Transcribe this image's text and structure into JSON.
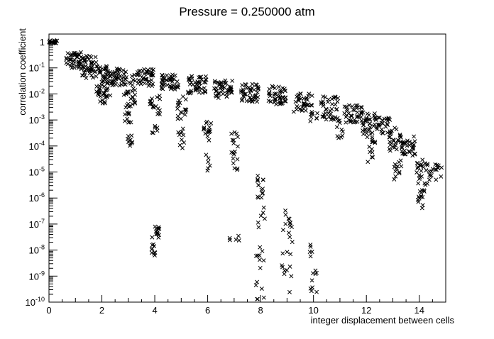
{
  "chart_data": {
    "type": "scatter",
    "title": "Pressure = 0.250000 atm",
    "xlabel": "integer displacement between cells",
    "ylabel": "correlation coefficient",
    "xlim": [
      0,
      15
    ],
    "ylim": [
      1e-10,
      2
    ],
    "yscale": "log",
    "grid": false,
    "legend": "none",
    "marker": "x",
    "marker_color": "#000000",
    "xticks": [
      {
        "value": 0,
        "label": "0"
      },
      {
        "value": 2,
        "label": "2"
      },
      {
        "value": 4,
        "label": "4"
      },
      {
        "value": 6,
        "label": "6"
      },
      {
        "value": 8,
        "label": "8"
      },
      {
        "value": 10,
        "label": "10"
      },
      {
        "value": 12,
        "label": "12"
      },
      {
        "value": 14,
        "label": "14"
      }
    ],
    "yticks": [
      {
        "value": 1,
        "base": "1",
        "exp": ""
      },
      {
        "value": 0.1,
        "base": "10",
        "exp": "-1"
      },
      {
        "value": 0.01,
        "base": "10",
        "exp": "-2"
      },
      {
        "value": 0.001,
        "base": "10",
        "exp": "-3"
      },
      {
        "value": 0.0001,
        "base": "10",
        "exp": "-4"
      },
      {
        "value": 1e-05,
        "base": "10",
        "exp": "-5"
      },
      {
        "value": 1e-06,
        "base": "10",
        "exp": "-6"
      },
      {
        "value": 1e-07,
        "base": "10",
        "exp": "-7"
      },
      {
        "value": 1e-08,
        "base": "10",
        "exp": "-8"
      },
      {
        "value": 1e-09,
        "base": "10",
        "exp": "-9"
      },
      {
        "value": 1e-10,
        "base": "10",
        "exp": "-10"
      }
    ],
    "clusters": [
      {
        "x": 0.15,
        "xspread": 0.18,
        "ymin": 0.85,
        "ymax": 1.15,
        "n": 18
      },
      {
        "x": 1.0,
        "xspread": 0.35,
        "ymin": 0.1,
        "ymax": 0.4,
        "n": 45
      },
      {
        "x": 1.5,
        "xspread": 0.3,
        "ymin": 0.04,
        "ymax": 0.3,
        "n": 45
      },
      {
        "x": 2.05,
        "xspread": 0.28,
        "ymin": 0.008,
        "ymax": 0.12,
        "n": 55
      },
      {
        "x": 2.05,
        "xspread": 0.15,
        "ymin": 0.004,
        "ymax": 0.02,
        "n": 14
      },
      {
        "x": 2.65,
        "xspread": 0.3,
        "ymin": 0.02,
        "ymax": 0.1,
        "n": 40
      },
      {
        "x": 3.05,
        "xspread": 0.22,
        "ymin": 0.003,
        "ymax": 0.06,
        "n": 30
      },
      {
        "x": 3.0,
        "xspread": 0.15,
        "ymin": 0.0008,
        "ymax": 0.002,
        "n": 10
      },
      {
        "x": 3.05,
        "xspread": 0.12,
        "ymin": 0.0001,
        "ymax": 0.0003,
        "n": 10
      },
      {
        "x": 3.6,
        "xspread": 0.35,
        "ymin": 0.02,
        "ymax": 0.09,
        "n": 45
      },
      {
        "x": 4.0,
        "xspread": 0.22,
        "ymin": 0.0015,
        "ymax": 0.01,
        "n": 18
      },
      {
        "x": 4.0,
        "xspread": 0.12,
        "ymin": 0.0003,
        "ymax": 0.0006,
        "n": 6
      },
      {
        "x": 4.0,
        "xspread": 0.18,
        "ymin": 3e-08,
        "ymax": 9e-08,
        "n": 14
      },
      {
        "x": 4.0,
        "xspread": 0.12,
        "ymin": 6e-09,
        "ymax": 2e-08,
        "n": 10
      },
      {
        "x": 4.6,
        "xspread": 0.35,
        "ymin": 0.015,
        "ymax": 0.06,
        "n": 45
      },
      {
        "x": 5.0,
        "xspread": 0.2,
        "ymin": 0.001,
        "ymax": 0.01,
        "n": 18
      },
      {
        "x": 5.0,
        "xspread": 0.12,
        "ymin": 8e-05,
        "ymax": 0.0005,
        "n": 10
      },
      {
        "x": 5.6,
        "xspread": 0.35,
        "ymin": 0.01,
        "ymax": 0.05,
        "n": 45
      },
      {
        "x": 6.0,
        "xspread": 0.15,
        "ymin": 0.00015,
        "ymax": 0.001,
        "n": 16
      },
      {
        "x": 6.0,
        "xspread": 0.1,
        "ymin": 1e-05,
        "ymax": 5e-05,
        "n": 6
      },
      {
        "x": 6.6,
        "xspread": 0.35,
        "ymin": 0.007,
        "ymax": 0.035,
        "n": 45
      },
      {
        "x": 7.0,
        "xspread": 0.15,
        "ymin": 1e-05,
        "ymax": 0.0005,
        "n": 18
      },
      {
        "x": 7.0,
        "xspread": 0.2,
        "ymin": 2e-08,
        "ymax": 4e-08,
        "n": 5
      },
      {
        "x": 7.6,
        "xspread": 0.35,
        "ymin": 0.005,
        "ymax": 0.025,
        "n": 45
      },
      {
        "x": 8.0,
        "xspread": 0.12,
        "ymin": 1e-06,
        "ymax": 8e-06,
        "n": 16
      },
      {
        "x": 8.0,
        "xspread": 0.18,
        "ymin": 1e-10,
        "ymax": 5e-07,
        "n": 20
      },
      {
        "x": 8.6,
        "xspread": 0.35,
        "ymin": 0.004,
        "ymax": 0.02,
        "n": 45
      },
      {
        "x": 9.0,
        "xspread": 0.2,
        "ymin": 2e-10,
        "ymax": 7e-07,
        "n": 24
      },
      {
        "x": 9.6,
        "xspread": 0.35,
        "ymin": 0.002,
        "ymax": 0.012,
        "n": 40
      },
      {
        "x": 10.0,
        "xspread": 0.15,
        "ymin": 0.0009,
        "ymax": 0.002,
        "n": 8
      },
      {
        "x": 10.0,
        "xspread": 0.15,
        "ymin": 2e-10,
        "ymax": 3e-08,
        "n": 14
      },
      {
        "x": 10.6,
        "xspread": 0.35,
        "ymin": 0.001,
        "ymax": 0.008,
        "n": 40
      },
      {
        "x": 11.0,
        "xspread": 0.15,
        "ymin": 0.0002,
        "ymax": 0.001,
        "n": 10
      },
      {
        "x": 11.5,
        "xspread": 0.35,
        "ymin": 0.0008,
        "ymax": 0.004,
        "n": 40
      },
      {
        "x": 12.1,
        "xspread": 0.25,
        "ymin": 0.0002,
        "ymax": 0.002,
        "n": 30
      },
      {
        "x": 12.2,
        "xspread": 0.15,
        "ymin": 2e-05,
        "ymax": 0.0002,
        "n": 12
      },
      {
        "x": 12.6,
        "xspread": 0.3,
        "ymin": 0.0003,
        "ymax": 0.0015,
        "n": 30
      },
      {
        "x": 13.1,
        "xspread": 0.25,
        "ymin": 5e-05,
        "ymax": 0.0005,
        "n": 30
      },
      {
        "x": 13.2,
        "xspread": 0.15,
        "ymin": 4e-06,
        "ymax": 3e-05,
        "n": 12
      },
      {
        "x": 13.6,
        "xspread": 0.3,
        "ymin": 4e-05,
        "ymax": 0.0003,
        "n": 30
      },
      {
        "x": 14.1,
        "xspread": 0.22,
        "ymin": 3e-06,
        "ymax": 3e-05,
        "n": 25
      },
      {
        "x": 14.1,
        "xspread": 0.15,
        "ymin": 4e-07,
        "ymax": 2e-06,
        "n": 14
      },
      {
        "x": 14.6,
        "xspread": 0.25,
        "ymin": 5e-06,
        "ymax": 2e-05,
        "n": 18
      }
    ]
  }
}
